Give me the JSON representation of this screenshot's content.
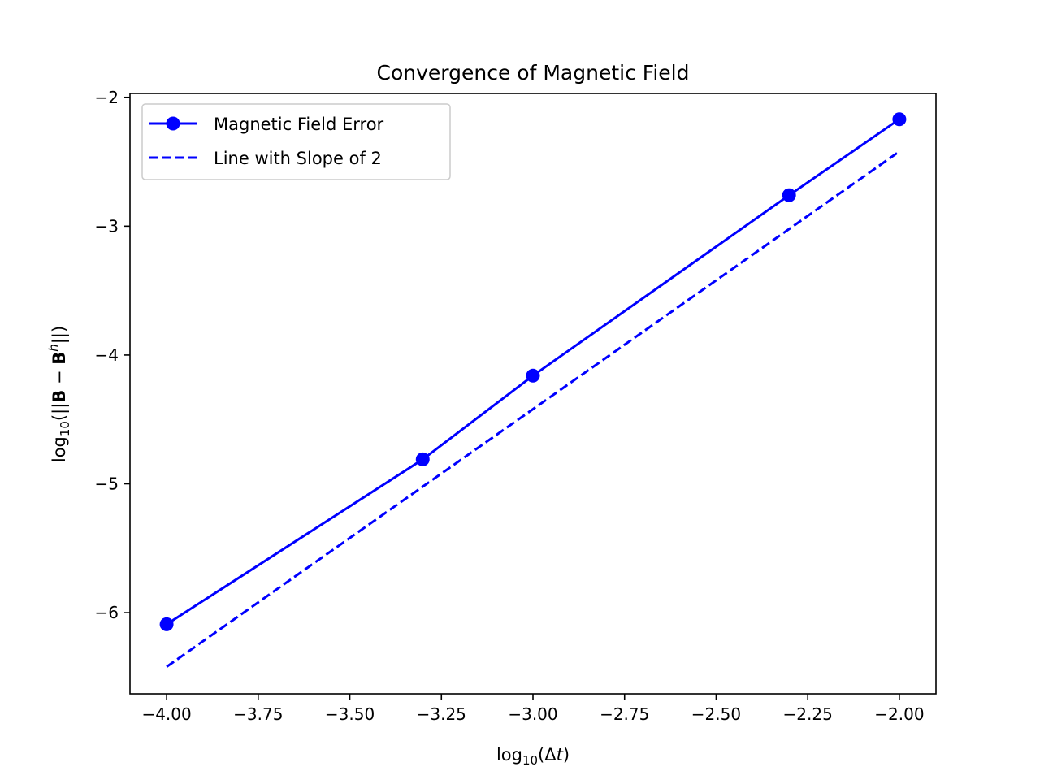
{
  "chart_data": {
    "type": "line",
    "title": "Convergence of Magnetic Field",
    "xlabel": "log10(Δt)",
    "ylabel": "log10(||B − B^h||)",
    "xlim": [
      -4.1,
      -1.9
    ],
    "ylim": [
      -6.63,
      -1.97
    ],
    "xticks": [
      -4.0,
      -3.75,
      -3.5,
      -3.25,
      -3.0,
      -2.75,
      -2.5,
      -2.25,
      -2.0
    ],
    "xtick_labels": [
      "−4.00",
      "−3.75",
      "−3.50",
      "−3.25",
      "−3.00",
      "−2.75",
      "−2.50",
      "−2.25",
      "−2.00"
    ],
    "yticks": [
      -2,
      -3,
      -4,
      -5,
      -6
    ],
    "ytick_labels": [
      "−2",
      "−3",
      "−4",
      "−5",
      "−6"
    ],
    "grid": false,
    "legend_position": "top-left",
    "series": [
      {
        "name": "Magnetic Field Error",
        "style": "solid-marker",
        "color": "#0000ff",
        "x": [
          -4.0,
          -3.301,
          -3.0,
          -2.301,
          -2.0
        ],
        "y": [
          -6.09,
          -4.81,
          -4.16,
          -2.76,
          -2.17
        ]
      },
      {
        "name": "Line with Slope of 2",
        "style": "dashed",
        "color": "#0000ff",
        "x": [
          -4.0,
          -2.0
        ],
        "y": [
          -6.42,
          -2.42
        ]
      }
    ]
  }
}
